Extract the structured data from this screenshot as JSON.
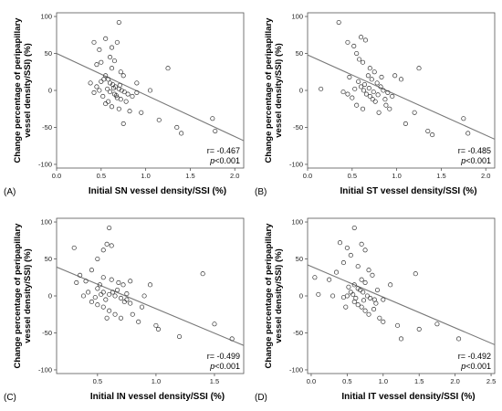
{
  "chart_data": [
    {
      "type": "scatter",
      "panel_label": "(A)",
      "xlabel": "Initial SN vessel density/SSI (%)",
      "ylabel_line1": "Change percentage of peripapillary",
      "ylabel_line2": "vessel density/SSI) (%)",
      "xlim": [
        0,
        2.1
      ],
      "ylim": [
        -105,
        105
      ],
      "xticks": [
        0.0,
        0.5,
        1.0,
        1.5,
        2.0
      ],
      "xtick_labels": [
        "0.0",
        "0.5",
        "1.0",
        "1.5",
        "2.0"
      ],
      "yticks": [
        -100,
        -50,
        0,
        50,
        100
      ],
      "ytick_labels": [
        "-100",
        "-50",
        "0",
        "50",
        "100"
      ],
      "r_text": "r= -0.467",
      "p_text": "<0.001",
      "p_label": "p",
      "fit": {
        "x0": 0.0,
        "y0": 50,
        "x1": 2.1,
        "y1": -68
      },
      "points": [
        [
          0.42,
          65
        ],
        [
          0.48,
          55
        ],
        [
          0.55,
          70
        ],
        [
          0.62,
          58
        ],
        [
          0.6,
          45
        ],
        [
          0.65,
          40
        ],
        [
          0.7,
          92
        ],
        [
          0.68,
          65
        ],
        [
          0.5,
          38
        ],
        [
          0.45,
          35
        ],
        [
          0.62,
          30
        ],
        [
          0.72,
          25
        ],
        [
          0.75,
          20
        ],
        [
          0.55,
          20
        ],
        [
          0.58,
          15
        ],
        [
          0.6,
          10
        ],
        [
          0.63,
          8
        ],
        [
          0.66,
          5
        ],
        [
          0.7,
          2
        ],
        [
          0.73,
          0
        ],
        [
          0.76,
          -2
        ],
        [
          0.8,
          -5
        ],
        [
          0.85,
          -8
        ],
        [
          0.9,
          -3
        ],
        [
          0.65,
          -5
        ],
        [
          0.68,
          -10
        ],
        [
          0.72,
          -12
        ],
        [
          0.58,
          -15
        ],
        [
          0.55,
          -18
        ],
        [
          0.62,
          -22
        ],
        [
          0.7,
          -25
        ],
        [
          0.52,
          -8
        ],
        [
          0.48,
          0
        ],
        [
          0.45,
          5
        ],
        [
          0.42,
          -3
        ],
        [
          0.38,
          10
        ],
        [
          0.5,
          12
        ],
        [
          0.53,
          15
        ],
        [
          0.78,
          -15
        ],
        [
          0.82,
          -28
        ],
        [
          0.9,
          10
        ],
        [
          1.05,
          0
        ],
        [
          0.75,
          -45
        ],
        [
          0.95,
          -30
        ],
        [
          1.15,
          -40
        ],
        [
          1.25,
          30
        ],
        [
          1.35,
          -50
        ],
        [
          1.4,
          -58
        ],
        [
          1.75,
          -38
        ],
        [
          1.78,
          -55
        ],
        [
          0.6,
          -2
        ],
        [
          0.64,
          3
        ],
        [
          0.67,
          -7
        ],
        [
          0.57,
          2
        ],
        [
          0.71,
          7
        ]
      ]
    },
    {
      "type": "scatter",
      "panel_label": "(B)",
      "xlabel": "Initial ST vessel density/SSI (%)",
      "ylabel_line1": "Change percentage of peripapillary",
      "ylabel_line2": "vessel density/SSI) (%)",
      "xlim": [
        0,
        2.1
      ],
      "ylim": [
        -105,
        105
      ],
      "xticks": [
        0.0,
        0.5,
        1.0,
        1.5,
        2.0
      ],
      "xtick_labels": [
        "0.0",
        "0.5",
        "1.0",
        "1.5",
        "2.0"
      ],
      "yticks": [
        -100,
        -50,
        0,
        50,
        100
      ],
      "ytick_labels": [
        "-100",
        "-50",
        "0",
        "50",
        "100"
      ],
      "r_text": "r= -0.485",
      "p_text": "<0.001",
      "p_label": "p",
      "fit": {
        "x0": 0.0,
        "y0": 48,
        "x1": 2.1,
        "y1": -66
      },
      "points": [
        [
          0.35,
          92
        ],
        [
          0.45,
          65
        ],
        [
          0.52,
          60
        ],
        [
          0.6,
          72
        ],
        [
          0.65,
          68
        ],
        [
          0.55,
          50
        ],
        [
          0.58,
          42
        ],
        [
          0.62,
          38
        ],
        [
          0.7,
          30
        ],
        [
          0.75,
          25
        ],
        [
          0.68,
          20
        ],
        [
          0.72,
          15
        ],
        [
          0.78,
          10
        ],
        [
          0.82,
          5
        ],
        [
          0.85,
          0
        ],
        [
          0.9,
          -3
        ],
        [
          0.6,
          5
        ],
        [
          0.63,
          0
        ],
        [
          0.66,
          -5
        ],
        [
          0.7,
          -8
        ],
        [
          0.73,
          -12
        ],
        [
          0.76,
          -15
        ],
        [
          0.5,
          -10
        ],
        [
          0.45,
          -5
        ],
        [
          0.4,
          -2
        ],
        [
          0.55,
          -20
        ],
        [
          0.62,
          -25
        ],
        [
          0.15,
          2
        ],
        [
          0.88,
          -20
        ],
        [
          0.92,
          -25
        ],
        [
          0.98,
          20
        ],
        [
          1.05,
          15
        ],
        [
          1.1,
          -45
        ],
        [
          1.2,
          -30
        ],
        [
          1.25,
          30
        ],
        [
          1.35,
          -55
        ],
        [
          1.4,
          -60
        ],
        [
          1.75,
          -38
        ],
        [
          1.8,
          -58
        ],
        [
          0.8,
          -30
        ],
        [
          0.95,
          -8
        ],
        [
          0.57,
          12
        ],
        [
          0.64,
          8
        ],
        [
          0.69,
          3
        ],
        [
          0.74,
          -2
        ],
        [
          0.79,
          -6
        ],
        [
          0.53,
          2
        ],
        [
          0.47,
          18
        ],
        [
          0.83,
          18
        ],
        [
          0.87,
          -12
        ]
      ]
    },
    {
      "type": "scatter",
      "panel_label": "(C)",
      "xlabel": "Initial IN vessel density/SSI (%)",
      "ylabel_line1": "Change percentage of peripapillary",
      "ylabel_line2": "vessel density/SSI) (%)",
      "xlim": [
        0.15,
        1.75
      ],
      "ylim": [
        -105,
        105
      ],
      "xticks": [
        0.5,
        1.0,
        1.5
      ],
      "xtick_labels": [
        "0.5",
        "1.0",
        "1.5"
      ],
      "yticks": [
        -100,
        -50,
        0,
        50,
        100
      ],
      "ytick_labels": [
        "-100",
        "-50",
        "0",
        "50",
        "100"
      ],
      "r_text": "r= -0.499",
      "p_text": "<0.001",
      "p_label": "p",
      "fit": {
        "x0": 0.15,
        "y0": 39,
        "x1": 1.75,
        "y1": -67
      },
      "points": [
        [
          0.3,
          65
        ],
        [
          0.55,
          62
        ],
        [
          0.6,
          92
        ],
        [
          0.62,
          68
        ],
        [
          0.58,
          70
        ],
        [
          0.5,
          50
        ],
        [
          0.45,
          35
        ],
        [
          0.35,
          28
        ],
        [
          0.4,
          20
        ],
        [
          0.55,
          25
        ],
        [
          0.62,
          22
        ],
        [
          0.68,
          18
        ],
        [
          0.72,
          15
        ],
        [
          0.78,
          20
        ],
        [
          0.5,
          10
        ],
        [
          0.55,
          5
        ],
        [
          0.6,
          2
        ],
        [
          0.65,
          0
        ],
        [
          0.7,
          -3
        ],
        [
          0.75,
          -5
        ],
        [
          0.78,
          -10
        ],
        [
          0.42,
          5
        ],
        [
          0.38,
          0
        ],
        [
          0.45,
          -8
        ],
        [
          0.5,
          -12
        ],
        [
          0.55,
          -15
        ],
        [
          0.6,
          -20
        ],
        [
          0.65,
          -25
        ],
        [
          0.7,
          -30
        ],
        [
          0.8,
          -25
        ],
        [
          0.85,
          -35
        ],
        [
          0.9,
          0
        ],
        [
          0.95,
          15
        ],
        [
          1.0,
          -40
        ],
        [
          1.02,
          -45
        ],
        [
          1.2,
          -55
        ],
        [
          1.4,
          30
        ],
        [
          1.5,
          -38
        ],
        [
          1.65,
          -58
        ],
        [
          0.48,
          -2
        ],
        [
          0.53,
          2
        ],
        [
          0.57,
          -5
        ],
        [
          0.63,
          5
        ],
        [
          0.67,
          8
        ],
        [
          0.73,
          -8
        ],
        [
          0.32,
          18
        ],
        [
          0.58,
          -30
        ],
        [
          0.75,
          3
        ],
        [
          0.52,
          15
        ],
        [
          0.88,
          -15
        ]
      ]
    },
    {
      "type": "scatter",
      "panel_label": "(D)",
      "xlabel": "Initial IT vessel density/SSI (%)",
      "ylabel_line1": "Change percentage of peripapillary",
      "ylabel_line2": "vessel density/SSI) (%)",
      "xlim": [
        -0.05,
        2.55
      ],
      "ylim": [
        -105,
        105
      ],
      "xticks": [
        0.0,
        0.5,
        1.0,
        1.5,
        2.0,
        2.5
      ],
      "xtick_labels": [
        "0.0",
        "0.5",
        "1.0",
        "1.5",
        "2.0",
        "2.5"
      ],
      "yticks": [
        -100,
        -50,
        0,
        50,
        100
      ],
      "ytick_labels": [
        "-100",
        "-50",
        "0",
        "50",
        "100"
      ],
      "r_text": "r= -0.492",
      "p_text": "<0.001",
      "p_label": "p",
      "fit": {
        "x0": -0.05,
        "y0": 42,
        "x1": 2.55,
        "y1": -66
      },
      "points": [
        [
          0.6,
          92
        ],
        [
          0.4,
          72
        ],
        [
          0.5,
          65
        ],
        [
          0.7,
          70
        ],
        [
          0.75,
          62
        ],
        [
          0.55,
          55
        ],
        [
          0.45,
          45
        ],
        [
          0.65,
          40
        ],
        [
          0.8,
          35
        ],
        [
          0.85,
          28
        ],
        [
          0.7,
          22
        ],
        [
          0.75,
          18
        ],
        [
          0.6,
          15
        ],
        [
          0.65,
          10
        ],
        [
          0.72,
          5
        ],
        [
          0.78,
          0
        ],
        [
          0.82,
          -3
        ],
        [
          0.88,
          -5
        ],
        [
          0.55,
          5
        ],
        [
          0.5,
          0
        ],
        [
          0.45,
          -2
        ],
        [
          0.6,
          -8
        ],
        [
          0.65,
          -12
        ],
        [
          0.7,
          -15
        ],
        [
          0.75,
          -20
        ],
        [
          0.8,
          -25
        ],
        [
          0.05,
          25
        ],
        [
          0.1,
          2
        ],
        [
          0.25,
          22
        ],
        [
          0.3,
          0
        ],
        [
          0.95,
          -30
        ],
        [
          1.0,
          -35
        ],
        [
          1.1,
          15
        ],
        [
          1.2,
          -40
        ],
        [
          1.25,
          -58
        ],
        [
          1.45,
          30
        ],
        [
          1.5,
          -45
        ],
        [
          1.75,
          -38
        ],
        [
          2.05,
          -58
        ],
        [
          0.9,
          -10
        ],
        [
          0.58,
          2
        ],
        [
          0.62,
          -3
        ],
        [
          0.68,
          8
        ],
        [
          0.73,
          -6
        ],
        [
          0.52,
          12
        ],
        [
          0.87,
          -18
        ],
        [
          1.0,
          -5
        ],
        [
          0.48,
          -15
        ],
        [
          0.35,
          32
        ],
        [
          0.92,
          8
        ]
      ]
    }
  ]
}
